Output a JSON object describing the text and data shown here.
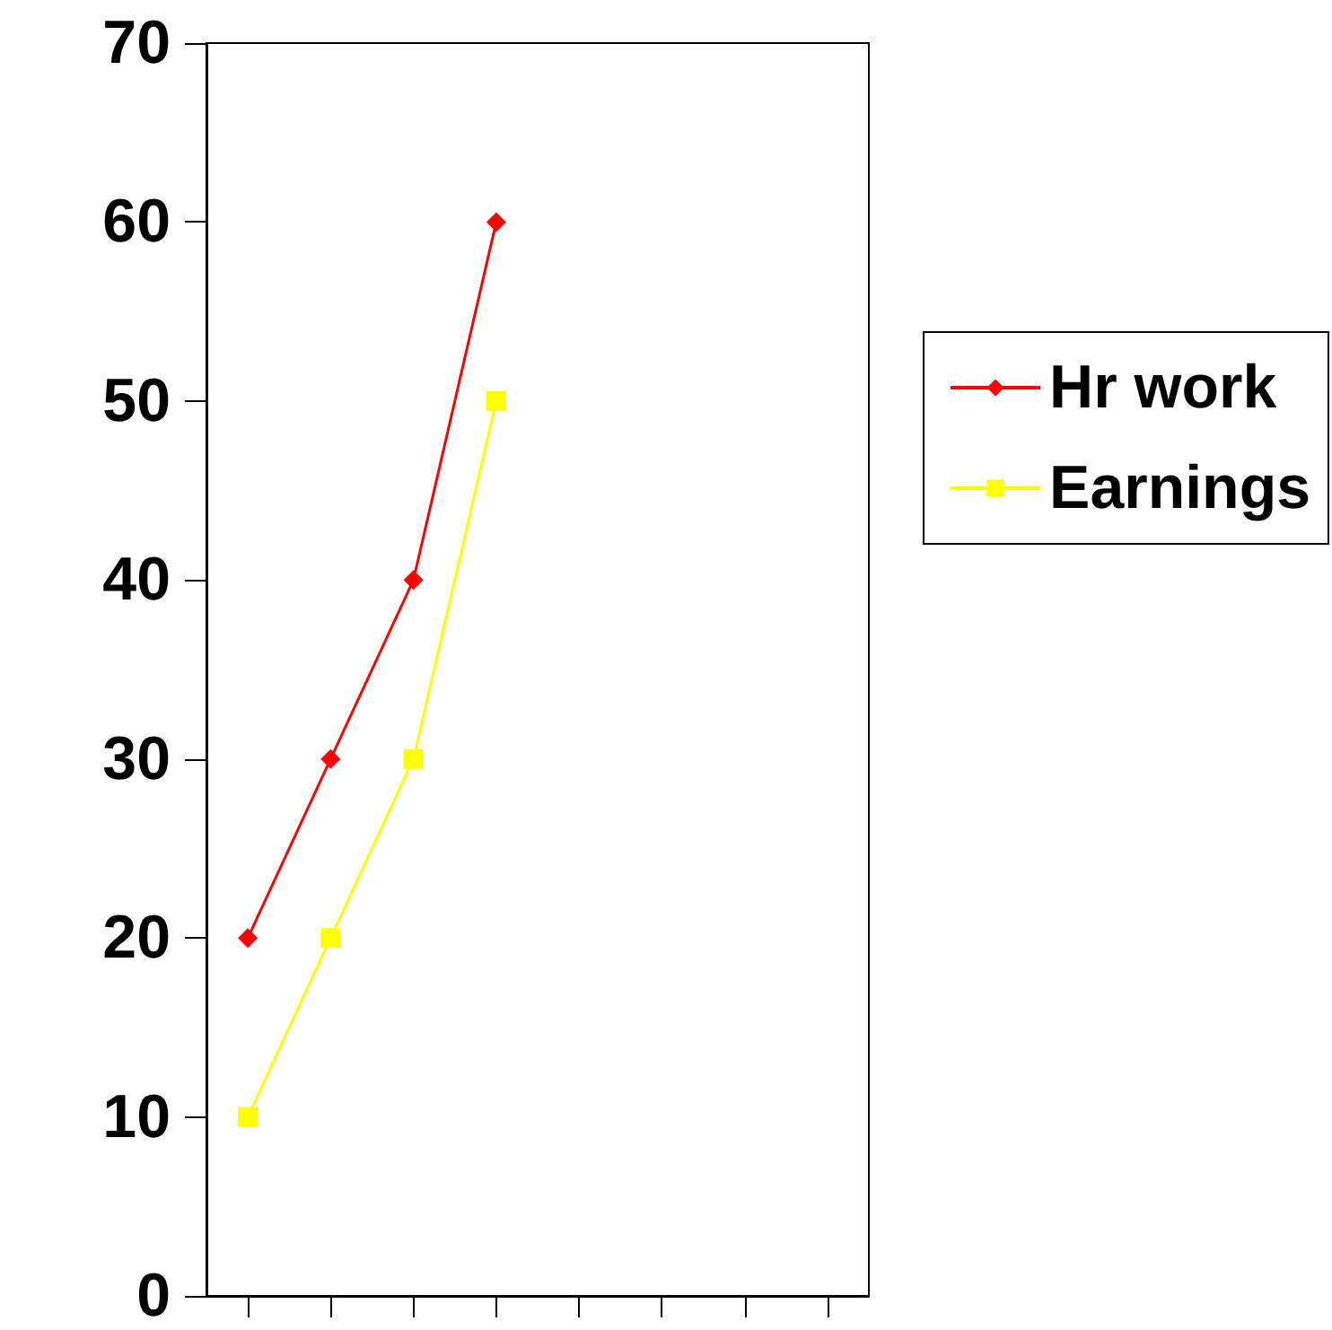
{
  "chart_data": {
    "type": "line",
    "categories": [
      null,
      null,
      null,
      null,
      null,
      null,
      null,
      null
    ],
    "series": [
      {
        "name": "Hr work",
        "color": "#ff0000",
        "marker": "diamond",
        "values": [
          20,
          30,
          40,
          60,
          null,
          null,
          null,
          null
        ]
      },
      {
        "name": "Earnings",
        "color": "#ffff00",
        "marker": "square",
        "values": [
          10,
          20,
          30,
          50,
          null,
          null,
          null,
          null
        ]
      }
    ],
    "ylim": [
      0,
      70
    ],
    "yticks": [
      0,
      10,
      20,
      30,
      40,
      50,
      60,
      70
    ],
    "grid": false,
    "legend": "right",
    "tick_labels": "y"
  }
}
